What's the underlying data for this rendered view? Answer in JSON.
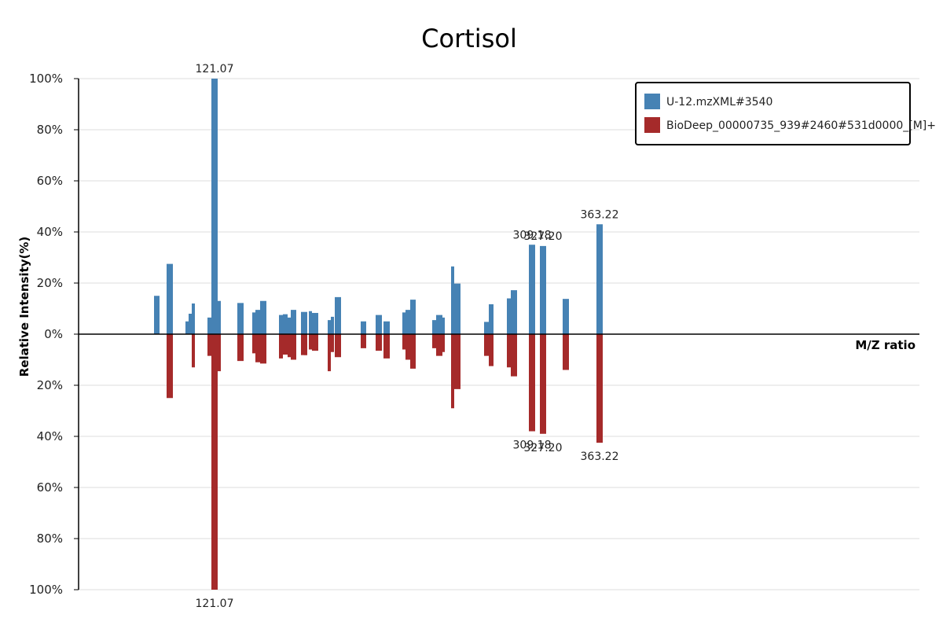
{
  "chart_data": {
    "type": "bar",
    "title": "Cortisol",
    "xlabel": "M/Z ratio",
    "ylabel": "Relative Intensity(%)",
    "ylim": [
      -100,
      100
    ],
    "y_ticks": [
      {
        "value": 100,
        "label": "100%"
      },
      {
        "value": 80,
        "label": "80%"
      },
      {
        "value": 60,
        "label": "60%"
      },
      {
        "value": 40,
        "label": "40%"
      },
      {
        "value": 20,
        "label": "20%"
      },
      {
        "value": 0,
        "label": "0%"
      },
      {
        "value": -20,
        "label": "20%"
      },
      {
        "value": -40,
        "label": "40%"
      },
      {
        "value": -60,
        "label": "60%"
      },
      {
        "value": -80,
        "label": "80%"
      },
      {
        "value": -100,
        "label": "100%"
      }
    ],
    "grid": true,
    "legend_position": "top-right",
    "series": [
      {
        "name": "U-12.mzXML#3540",
        "color": "#4682b4",
        "direction": "up",
        "values": [
          15,
          27.5,
          5,
          8,
          12,
          6.5,
          100,
          13,
          12.2,
          8.5,
          9.5,
          13,
          7.5,
          7.8,
          6.5,
          9.5,
          8.7,
          6.5,
          9,
          8.3,
          5.5,
          6.8,
          14.5,
          5,
          7.5,
          5,
          8.5,
          9.5,
          13.5,
          5.5,
          7.5,
          6.5,
          26.5,
          19.8,
          4.8,
          11.7,
          14,
          17.2,
          35,
          34.5,
          13.8,
          43
        ]
      },
      {
        "name": "BioDeep_00000735_939#2460#531d0000_[M]+",
        "color": "#a52a2a",
        "direction": "down",
        "values": [
          0,
          25,
          0,
          0,
          13,
          8.5,
          100,
          14.5,
          10.5,
          7.5,
          11,
          11.5,
          9.5,
          8,
          9,
          10,
          8.2,
          8.2,
          6,
          6.5,
          14.5,
          7,
          9,
          5.5,
          6.5,
          9.5,
          6,
          10,
          13.5,
          5.5,
          8.5,
          7,
          29,
          21.5,
          8.5,
          12.5,
          13,
          16.5,
          38,
          39,
          14,
          42.5
        ]
      }
    ],
    "peak_labels_top": [
      {
        "index": 6,
        "text": "121.07"
      },
      {
        "index": 38,
        "text": "309.18"
      },
      {
        "index": 39,
        "text": "327.20"
      },
      {
        "index": 41,
        "text": "363.22"
      }
    ],
    "peak_labels_bottom": [
      {
        "index": 6,
        "text": "121.07"
      },
      {
        "index": 38,
        "text": "309.18"
      },
      {
        "index": 39,
        "text": "327.20"
      },
      {
        "index": 41,
        "text": "363.22"
      }
    ]
  }
}
